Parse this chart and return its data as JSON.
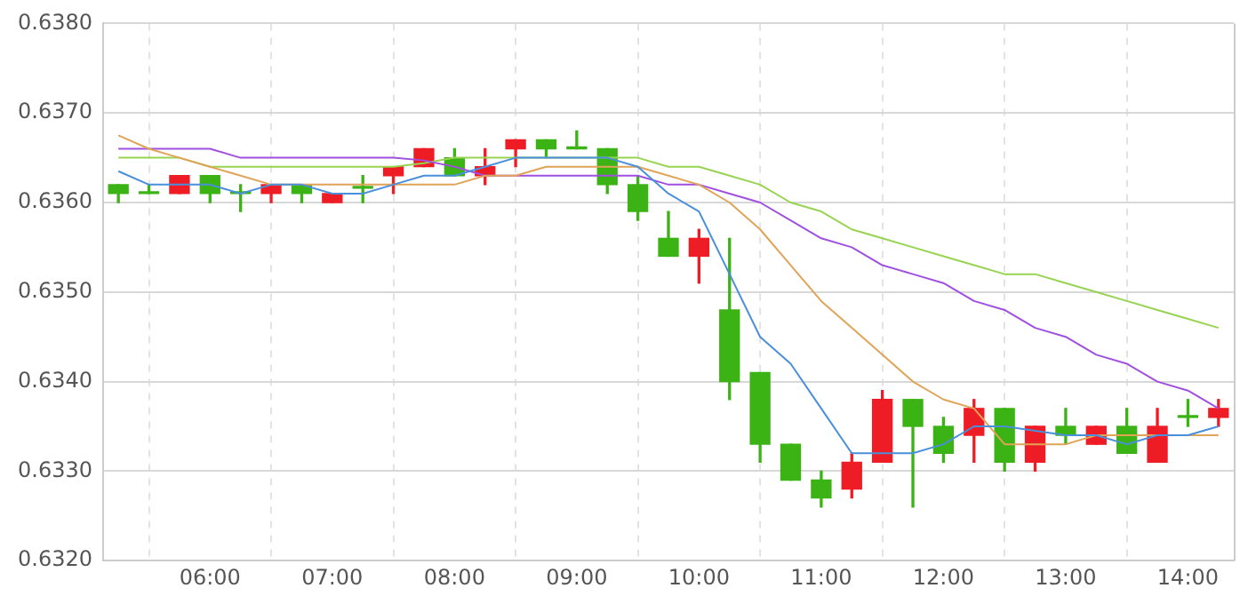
{
  "chart_data": {
    "type": "candlestick",
    "x": [
      5.25,
      5.5,
      5.75,
      6,
      6.25,
      6.5,
      6.75,
      7,
      7.25,
      7.5,
      7.75,
      8,
      8.25,
      8.5,
      8.75,
      9,
      9.25,
      9.5,
      9.75,
      10,
      10.25,
      10.5,
      10.75,
      11,
      11.25,
      11.5,
      11.75,
      12,
      12.25,
      12.5,
      12.75,
      13,
      13.25,
      13.5,
      13.75,
      14,
      14.25
    ],
    "ohlc": [
      [
        0.6362,
        0.6362,
        0.636,
        0.6361
      ],
      [
        0.63612,
        0.6362,
        0.6361,
        0.6361
      ],
      [
        0.6361,
        0.6363,
        0.6361,
        0.6363
      ],
      [
        0.6363,
        0.6363,
        0.636,
        0.6361
      ],
      [
        0.63612,
        0.6362,
        0.6359,
        0.6361
      ],
      [
        0.6361,
        0.6362,
        0.636,
        0.6362
      ],
      [
        0.6362,
        0.6362,
        0.636,
        0.6361
      ],
      [
        0.636,
        0.6361,
        0.636,
        0.6361
      ],
      [
        0.63618,
        0.6363,
        0.636,
        0.63616
      ],
      [
        0.6363,
        0.6364,
        0.6361,
        0.6364
      ],
      [
        0.6364,
        0.6366,
        0.6364,
        0.6366
      ],
      [
        0.6365,
        0.6366,
        0.6363,
        0.6363
      ],
      [
        0.6363,
        0.6366,
        0.6362,
        0.6364
      ],
      [
        0.6366,
        0.6367,
        0.6364,
        0.6367
      ],
      [
        0.6367,
        0.6367,
        0.6365,
        0.6366
      ],
      [
        0.63662,
        0.6368,
        0.6366,
        0.6366
      ],
      [
        0.6366,
        0.6366,
        0.6361,
        0.6362
      ],
      [
        0.6362,
        0.6363,
        0.6358,
        0.6359
      ],
      [
        0.6356,
        0.6359,
        0.6354,
        0.6354
      ],
      [
        0.6354,
        0.6357,
        0.6351,
        0.6356
      ],
      [
        0.6348,
        0.6356,
        0.6338,
        0.634
      ],
      [
        0.6341,
        0.6341,
        0.6331,
        0.6333
      ],
      [
        0.6333,
        0.6333,
        0.6329,
        0.6329
      ],
      [
        0.6329,
        0.633,
        0.6326,
        0.6327
      ],
      [
        0.6328,
        0.6332,
        0.6327,
        0.6331
      ],
      [
        0.6331,
        0.6339,
        0.6331,
        0.6338
      ],
      [
        0.6338,
        0.6338,
        0.6326,
        0.6335
      ],
      [
        0.6335,
        0.6336,
        0.6331,
        0.6332
      ],
      [
        0.6334,
        0.6338,
        0.6331,
        0.6337
      ],
      [
        0.6337,
        0.6337,
        0.633,
        0.6331
      ],
      [
        0.6331,
        0.6335,
        0.633,
        0.6335
      ],
      [
        0.6335,
        0.6337,
        0.6333,
        0.6334
      ],
      [
        0.6333,
        0.6335,
        0.6333,
        0.6335
      ],
      [
        0.6335,
        0.6337,
        0.6332,
        0.6332
      ],
      [
        0.6331,
        0.6337,
        0.6331,
        0.6335
      ],
      [
        0.63361,
        0.6338,
        0.6335,
        0.6336
      ],
      [
        0.6336,
        0.6338,
        0.6335,
        0.6337
      ]
    ],
    "colors": [
      "#3bb314",
      "#3bb314",
      "#ee1c24",
      "#3bb314",
      "#3bb314",
      "#ee1c24",
      "#3bb314",
      "#ee1c24",
      "#3bb314",
      "#ee1c24",
      "#ee1c24",
      "#3bb314",
      "#ee1c24",
      "#ee1c24",
      "#3bb314",
      "#3bb314",
      "#3bb314",
      "#3bb314",
      "#3bb314",
      "#ee1c24",
      "#3bb314",
      "#3bb314",
      "#3bb314",
      "#3bb314",
      "#ee1c24",
      "#ee1c24",
      "#3bb314",
      "#3bb314",
      "#ee1c24",
      "#3bb314",
      "#ee1c24",
      "#3bb314",
      "#ee1c24",
      "#3bb314",
      "#ee1c24",
      "#3bb314",
      "#ee1c24"
    ],
    "series": [
      {
        "type": "line",
        "color": "#4a8fdc",
        "values": [
          0.63635,
          0.6362,
          0.6362,
          0.6362,
          0.6361,
          0.6362,
          0.6362,
          0.6361,
          0.6361,
          0.6362,
          0.6363,
          0.6363,
          0.6364,
          0.6365,
          0.6365,
          0.6365,
          0.6365,
          0.6364,
          0.6361,
          0.6359,
          0.6352,
          0.6345,
          0.6342,
          0.6337,
          0.6332,
          0.6332,
          0.6332,
          0.6333,
          0.6335,
          0.6335,
          0.63345,
          0.6334,
          0.6334,
          0.6333,
          0.6334,
          0.6334,
          0.6335
        ]
      },
      {
        "type": "line",
        "color": "#e0a458",
        "values": [
          0.63675,
          0.6366,
          0.6365,
          0.6364,
          0.6363,
          0.6362,
          0.6362,
          0.6362,
          0.6362,
          0.6362,
          0.6362,
          0.6362,
          0.6363,
          0.6363,
          0.6364,
          0.6364,
          0.6364,
          0.6364,
          0.6363,
          0.6362,
          0.636,
          0.6357,
          0.6353,
          0.6349,
          0.6346,
          0.6343,
          0.634,
          0.6338,
          0.6337,
          0.6333,
          0.6333,
          0.6333,
          0.6334,
          0.6334,
          0.6334,
          0.6334,
          0.6334
        ]
      },
      {
        "type": "line",
        "color": "#a050e0",
        "values": [
          0.6366,
          0.6366,
          0.6366,
          0.6366,
          0.6365,
          0.6365,
          0.6365,
          0.6365,
          0.6365,
          0.6365,
          0.63647,
          0.6364,
          0.6363,
          0.6363,
          0.6363,
          0.6363,
          0.6363,
          0.6363,
          0.6362,
          0.6362,
          0.6361,
          0.636,
          0.6358,
          0.6356,
          0.6355,
          0.6353,
          0.6352,
          0.6351,
          0.6349,
          0.6348,
          0.6346,
          0.6345,
          0.6343,
          0.6342,
          0.634,
          0.6339,
          0.6337
        ]
      },
      {
        "type": "line",
        "color": "#98d452",
        "values": [
          0.6365,
          0.6365,
          0.6365,
          0.6364,
          0.6364,
          0.6364,
          0.6364,
          0.6364,
          0.6364,
          0.6364,
          0.63644,
          0.6365,
          0.6365,
          0.6365,
          0.6365,
          0.6365,
          0.6365,
          0.6365,
          0.6364,
          0.6364,
          0.6363,
          0.6362,
          0.636,
          0.6359,
          0.6357,
          0.6356,
          0.6355,
          0.6354,
          0.6353,
          0.6352,
          0.6352,
          0.6351,
          0.635,
          0.6349,
          0.6348,
          0.6347,
          0.6346
        ]
      }
    ],
    "xlim": [
      5.125,
      14.375
    ],
    "xticks": [
      {
        "value": 6,
        "label": "06:00"
      },
      {
        "value": 7,
        "label": "07:00"
      },
      {
        "value": 8,
        "label": "08:00"
      },
      {
        "value": 9,
        "label": "09:00"
      },
      {
        "value": 10,
        "label": "10:00"
      },
      {
        "value": 11,
        "label": "11:00"
      },
      {
        "value": 12,
        "label": "12:00"
      },
      {
        "value": 13,
        "label": "13:00"
      },
      {
        "value": 14,
        "label": "14:00"
      }
    ],
    "ylim": [
      0.632,
      0.638
    ],
    "yticks": [
      {
        "value": 0.632,
        "label": "0.6320"
      },
      {
        "value": 0.633,
        "label": "0.6330"
      },
      {
        "value": 0.634,
        "label": "0.6340"
      },
      {
        "value": 0.635,
        "label": "0.6350"
      },
      {
        "value": 0.636,
        "label": "0.6360"
      },
      {
        "value": 0.637,
        "label": "0.6370"
      },
      {
        "value": 0.638,
        "label": "0.6380"
      }
    ],
    "grid": true,
    "marker": "none"
  }
}
